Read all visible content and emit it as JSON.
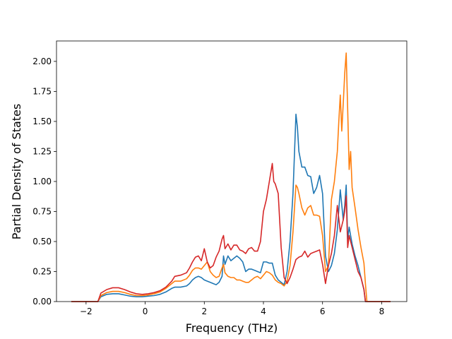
{
  "chart_data": {
    "type": "line",
    "title": "",
    "xlabel": "Frequency (THz)",
    "ylabel": "Partial Density of States",
    "xlim": [
      -3.0,
      8.85
    ],
    "ylim": [
      0.0,
      2.17
    ],
    "xticks": [
      -2,
      0,
      2,
      4,
      6,
      8
    ],
    "xtick_labels": [
      "−2",
      "0",
      "2",
      "4",
      "6",
      "8"
    ],
    "yticks": [
      0.0,
      0.25,
      0.5,
      0.75,
      1.0,
      1.25,
      1.5,
      1.75,
      2.0
    ],
    "ytick_labels": [
      "0.00",
      "0.25",
      "0.50",
      "0.75",
      "1.00",
      "1.25",
      "1.50",
      "1.75",
      "2.00"
    ],
    "grid": false,
    "legend": false,
    "series": [
      {
        "color": "#1f77b4",
        "x": [
          -2.5,
          -1.6,
          -1.5,
          -1.3,
          -1.1,
          -0.9,
          -0.7,
          -0.5,
          -0.3,
          -0.1,
          0.1,
          0.3,
          0.5,
          0.7,
          0.9,
          1.0,
          1.2,
          1.4,
          1.5,
          1.6,
          1.7,
          1.8,
          1.9,
          2.0,
          2.1,
          2.2,
          2.3,
          2.4,
          2.5,
          2.6,
          2.65,
          2.7,
          2.8,
          2.9,
          3.0,
          3.1,
          3.2,
          3.3,
          3.4,
          3.5,
          3.6,
          3.7,
          3.8,
          3.9,
          4.0,
          4.1,
          4.2,
          4.3,
          4.4,
          4.5,
          4.6,
          4.7,
          4.8,
          4.9,
          5.0,
          5.1,
          5.15,
          5.2,
          5.3,
          5.4,
          5.5,
          5.6,
          5.7,
          5.8,
          5.9,
          6.0,
          6.1,
          6.2,
          6.3,
          6.4,
          6.5,
          6.6,
          6.7,
          6.75,
          6.8,
          6.85,
          6.9,
          6.95,
          7.0,
          7.1,
          7.2,
          7.3,
          7.4,
          7.45,
          7.5,
          8.3
        ],
        "y": [
          0.0,
          0.0,
          0.04,
          0.06,
          0.065,
          0.065,
          0.055,
          0.045,
          0.04,
          0.04,
          0.045,
          0.05,
          0.06,
          0.08,
          0.11,
          0.12,
          0.12,
          0.13,
          0.15,
          0.18,
          0.2,
          0.21,
          0.2,
          0.18,
          0.17,
          0.16,
          0.15,
          0.14,
          0.16,
          0.21,
          0.38,
          0.31,
          0.38,
          0.34,
          0.36,
          0.38,
          0.36,
          0.33,
          0.25,
          0.27,
          0.27,
          0.26,
          0.25,
          0.24,
          0.33,
          0.33,
          0.32,
          0.32,
          0.22,
          0.18,
          0.16,
          0.14,
          0.25,
          0.5,
          0.9,
          1.56,
          1.45,
          1.25,
          1.12,
          1.12,
          1.05,
          1.04,
          0.9,
          0.95,
          1.05,
          0.9,
          0.38,
          0.25,
          0.3,
          0.4,
          0.6,
          0.93,
          0.68,
          0.8,
          0.97,
          0.52,
          0.62,
          0.55,
          0.48,
          0.38,
          0.3,
          0.2,
          0.1,
          0.0,
          0.0,
          0.0
        ]
      },
      {
        "color": "#ff7f0e",
        "x": [
          -2.5,
          -1.6,
          -1.5,
          -1.3,
          -1.1,
          -0.9,
          -0.7,
          -0.5,
          -0.3,
          -0.1,
          0.1,
          0.3,
          0.5,
          0.7,
          0.9,
          1.0,
          1.2,
          1.4,
          1.5,
          1.6,
          1.7,
          1.8,
          1.9,
          2.0,
          2.1,
          2.2,
          2.3,
          2.4,
          2.5,
          2.6,
          2.65,
          2.7,
          2.8,
          2.9,
          3.0,
          3.1,
          3.2,
          3.3,
          3.4,
          3.5,
          3.6,
          3.7,
          3.8,
          3.9,
          4.0,
          4.1,
          4.2,
          4.3,
          4.4,
          4.5,
          4.6,
          4.7,
          4.8,
          4.9,
          5.0,
          5.1,
          5.15,
          5.2,
          5.3,
          5.4,
          5.5,
          5.6,
          5.7,
          5.8,
          5.9,
          6.0,
          6.1,
          6.2,
          6.3,
          6.4,
          6.5,
          6.55,
          6.6,
          6.65,
          6.7,
          6.75,
          6.8,
          6.85,
          6.9,
          6.95,
          7.0,
          7.1,
          7.2,
          7.3,
          7.4,
          7.45,
          7.5,
          8.3
        ],
        "y": [
          0.0,
          0.0,
          0.05,
          0.075,
          0.085,
          0.085,
          0.075,
          0.06,
          0.05,
          0.05,
          0.055,
          0.065,
          0.08,
          0.11,
          0.15,
          0.17,
          0.17,
          0.19,
          0.22,
          0.26,
          0.28,
          0.28,
          0.27,
          0.3,
          0.33,
          0.25,
          0.22,
          0.2,
          0.21,
          0.28,
          0.31,
          0.24,
          0.21,
          0.2,
          0.2,
          0.18,
          0.18,
          0.17,
          0.16,
          0.16,
          0.18,
          0.2,
          0.21,
          0.19,
          0.22,
          0.25,
          0.24,
          0.22,
          0.18,
          0.16,
          0.15,
          0.13,
          0.17,
          0.3,
          0.58,
          0.97,
          0.95,
          0.9,
          0.78,
          0.72,
          0.78,
          0.8,
          0.72,
          0.72,
          0.71,
          0.55,
          0.25,
          0.3,
          0.85,
          1.0,
          1.25,
          1.5,
          1.72,
          1.42,
          1.65,
          1.9,
          2.07,
          1.6,
          1.1,
          1.25,
          0.95,
          0.78,
          0.6,
          0.45,
          0.32,
          0.15,
          0.0,
          0.0
        ]
      },
      {
        "color": "#d62728",
        "x": [
          -2.5,
          -1.6,
          -1.5,
          -1.3,
          -1.1,
          -0.9,
          -0.7,
          -0.5,
          -0.3,
          -0.1,
          0.1,
          0.3,
          0.5,
          0.7,
          0.9,
          1.0,
          1.2,
          1.4,
          1.5,
          1.6,
          1.7,
          1.8,
          1.9,
          2.0,
          2.1,
          2.2,
          2.3,
          2.4,
          2.5,
          2.6,
          2.65,
          2.7,
          2.8,
          2.9,
          3.0,
          3.1,
          3.2,
          3.3,
          3.4,
          3.5,
          3.6,
          3.7,
          3.8,
          3.9,
          4.0,
          4.1,
          4.2,
          4.3,
          4.35,
          4.4,
          4.5,
          4.6,
          4.7,
          4.8,
          4.9,
          5.0,
          5.1,
          5.2,
          5.3,
          5.4,
          5.5,
          5.6,
          5.7,
          5.8,
          5.9,
          6.0,
          6.1,
          6.2,
          6.3,
          6.4,
          6.5,
          6.6,
          6.7,
          6.75,
          6.8,
          6.85,
          6.9,
          6.95,
          7.0,
          7.1,
          7.2,
          7.3,
          7.4,
          7.45,
          7.5,
          8.3
        ],
        "y": [
          0.0,
          0.0,
          0.07,
          0.1,
          0.115,
          0.115,
          0.1,
          0.08,
          0.065,
          0.06,
          0.065,
          0.075,
          0.09,
          0.12,
          0.17,
          0.21,
          0.22,
          0.24,
          0.28,
          0.33,
          0.37,
          0.38,
          0.34,
          0.44,
          0.33,
          0.28,
          0.3,
          0.37,
          0.42,
          0.52,
          0.55,
          0.44,
          0.48,
          0.43,
          0.47,
          0.47,
          0.43,
          0.42,
          0.4,
          0.44,
          0.45,
          0.42,
          0.42,
          0.5,
          0.75,
          0.85,
          1.0,
          1.15,
          1.0,
          0.98,
          0.9,
          0.45,
          0.2,
          0.15,
          0.2,
          0.27,
          0.35,
          0.37,
          0.38,
          0.42,
          0.37,
          0.4,
          0.41,
          0.42,
          0.43,
          0.31,
          0.15,
          0.3,
          0.4,
          0.55,
          0.8,
          0.58,
          0.68,
          0.75,
          0.88,
          0.45,
          0.55,
          0.5,
          0.45,
          0.35,
          0.25,
          0.2,
          0.1,
          0.0,
          0.0,
          0.0
        ]
      }
    ]
  }
}
